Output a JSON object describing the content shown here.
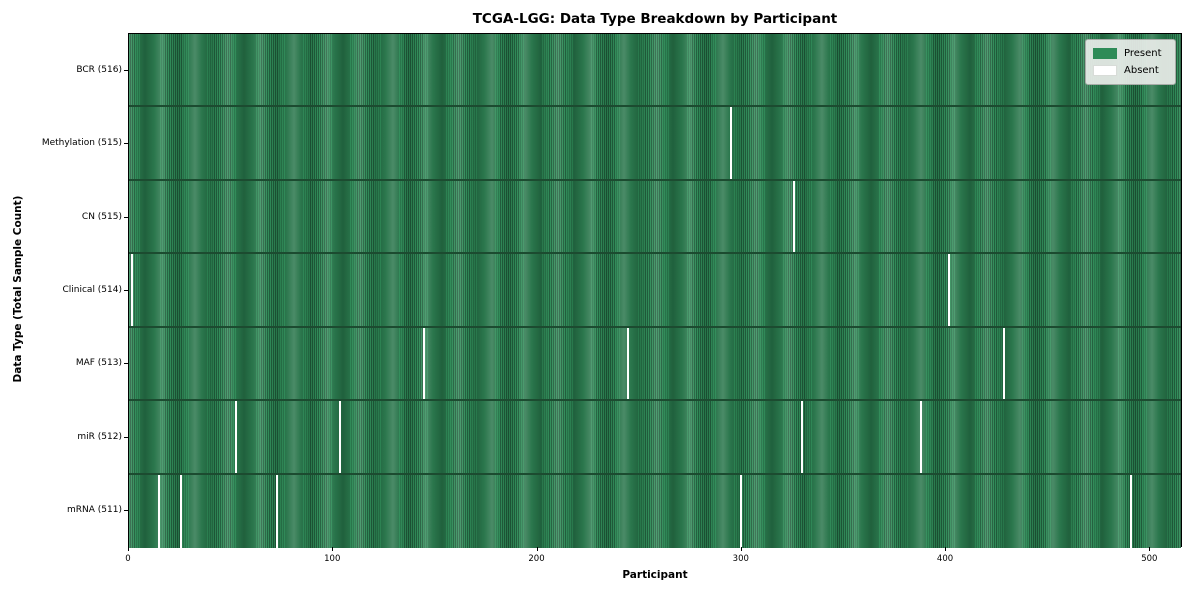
{
  "chart_data": {
    "type": "heatmap",
    "title": "TCGA-LGG: Data Type Breakdown by Participant",
    "xlabel": "Participant",
    "ylabel": "Data Type (Total Sample Count)",
    "x_range": [
      0,
      516
    ],
    "x_ticks": [
      0,
      100,
      200,
      300,
      400,
      500
    ],
    "grid": false,
    "legend_position": "upper right",
    "legend": [
      {
        "label": "Present",
        "color": "#2e8b57"
      },
      {
        "label": "Absent",
        "color": "#ffffff"
      }
    ],
    "colors": {
      "present": "#2e8b57",
      "bar_edge": "#1e5c3a",
      "absent": "#ffffff"
    },
    "rows": [
      {
        "label": "BCR (516)",
        "total_samples": 516,
        "absent_participants": []
      },
      {
        "label": "Methylation (515)",
        "total_samples": 515,
        "absent_participants": [
          294
        ]
      },
      {
        "label": "CN (515)",
        "total_samples": 515,
        "absent_participants": [
          325
        ]
      },
      {
        "label": "Clinical (514)",
        "total_samples": 514,
        "absent_participants": [
          1,
          401
        ]
      },
      {
        "label": "MAF (513)",
        "total_samples": 513,
        "absent_participants": [
          144,
          244,
          428
        ]
      },
      {
        "label": "miR (512)",
        "total_samples": 512,
        "absent_participants": [
          52,
          103,
          329,
          387
        ]
      },
      {
        "label": "mRNA (511)",
        "total_samples": 511,
        "absent_participants": [
          14,
          25,
          72,
          299,
          490
        ]
      }
    ]
  }
}
